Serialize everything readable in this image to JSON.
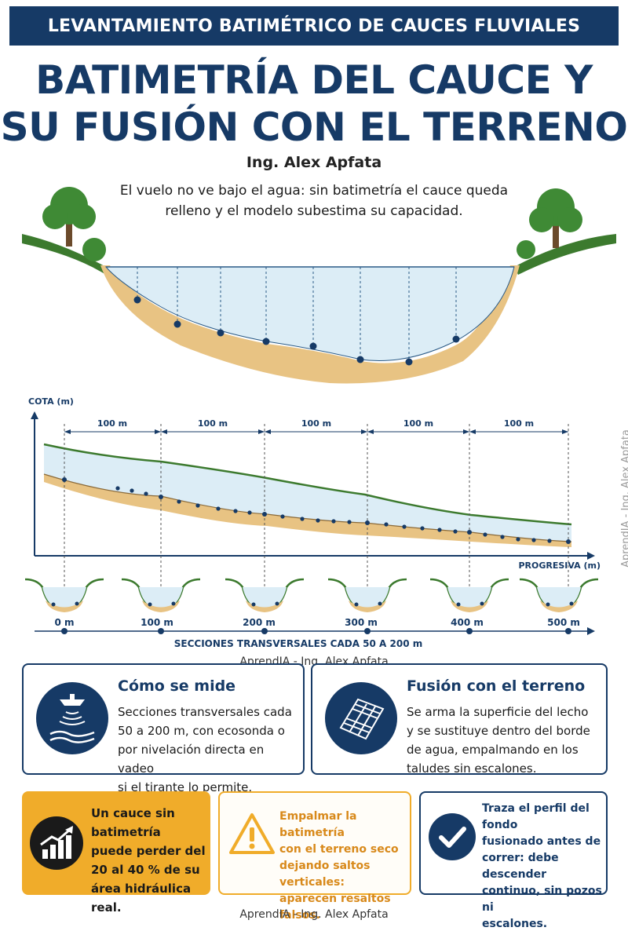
{
  "header": {
    "banner": "LEVANTAMIENTO BATIMÉTRICO DE CAUCES FLUVIALES",
    "title_line1": "BATIMETRÍA DEL CAUCE Y",
    "title_line2": "SU FUSIÓN CON EL TERRENO",
    "author": "Ing. Alex Apfata",
    "intro": "El vuelo no ve bajo el agua: sin batimetría el cauce queda relleno y el modelo subestima su capacidad."
  },
  "profile": {
    "y_axis_label": "COTA (m)",
    "x_axis_label": "PROGRESIVA (m)",
    "segment_labels": [
      "100 m",
      "100 m",
      "100 m",
      "100 m",
      "100 m"
    ],
    "section_labels": [
      "0 m",
      "100 m",
      "200 m",
      "300 m",
      "400 m",
      "500 m"
    ],
    "sections_caption": "SECCIONES TRANSVERSALES CADA 50 A 200 m"
  },
  "watermarks": {
    "side": "AprendIA - Ing. Alex Apfata",
    "middle": "AprendIA - Ing. Alex Apfata",
    "bottom": "AprendIA - Ing. Alex Apfata"
  },
  "cards": {
    "measure": {
      "title": "Cómo se mide",
      "lines": [
        "Secciones transversales cada",
        "50 a 200 m, con ecosonda o",
        "por nivelación directa en vadeo",
        "si el tirante lo permite."
      ],
      "icon": "echosounder-icon"
    },
    "fusion": {
      "title": "Fusión con el terreno",
      "lines": [
        "Se arma la superficie del lecho",
        "y se sustituye dentro del borde",
        "de agua, empalmando en los",
        "taludes sin escalones."
      ],
      "icon": "mesh-grid-icon"
    }
  },
  "alerts": {
    "stat": {
      "lines": [
        "Un cauce sin batimetría",
        "puede perder del",
        "20 al 40 % de su",
        "área hidráulica real."
      ],
      "icon": "bar-chart-trend-icon"
    },
    "warning": {
      "lines": [
        "Empalmar la batimetría",
        "con el terreno seco",
        "dejando saltos verticales:",
        "aparecen resaltos falsos."
      ],
      "icon": "warning-triangle-icon"
    },
    "check": {
      "lines": [
        "Traza el perfil del fondo",
        "fusionado antes de",
        "correr: debe descender",
        "continuo, sin pozos ni",
        "escalones."
      ],
      "icon": "checkmark-icon"
    }
  },
  "colors": {
    "navy": "#163a66",
    "amber": "#f0ac2a",
    "water": "#dcedf6",
    "sand": "#e8c383",
    "grass": "#3c7a2e"
  }
}
